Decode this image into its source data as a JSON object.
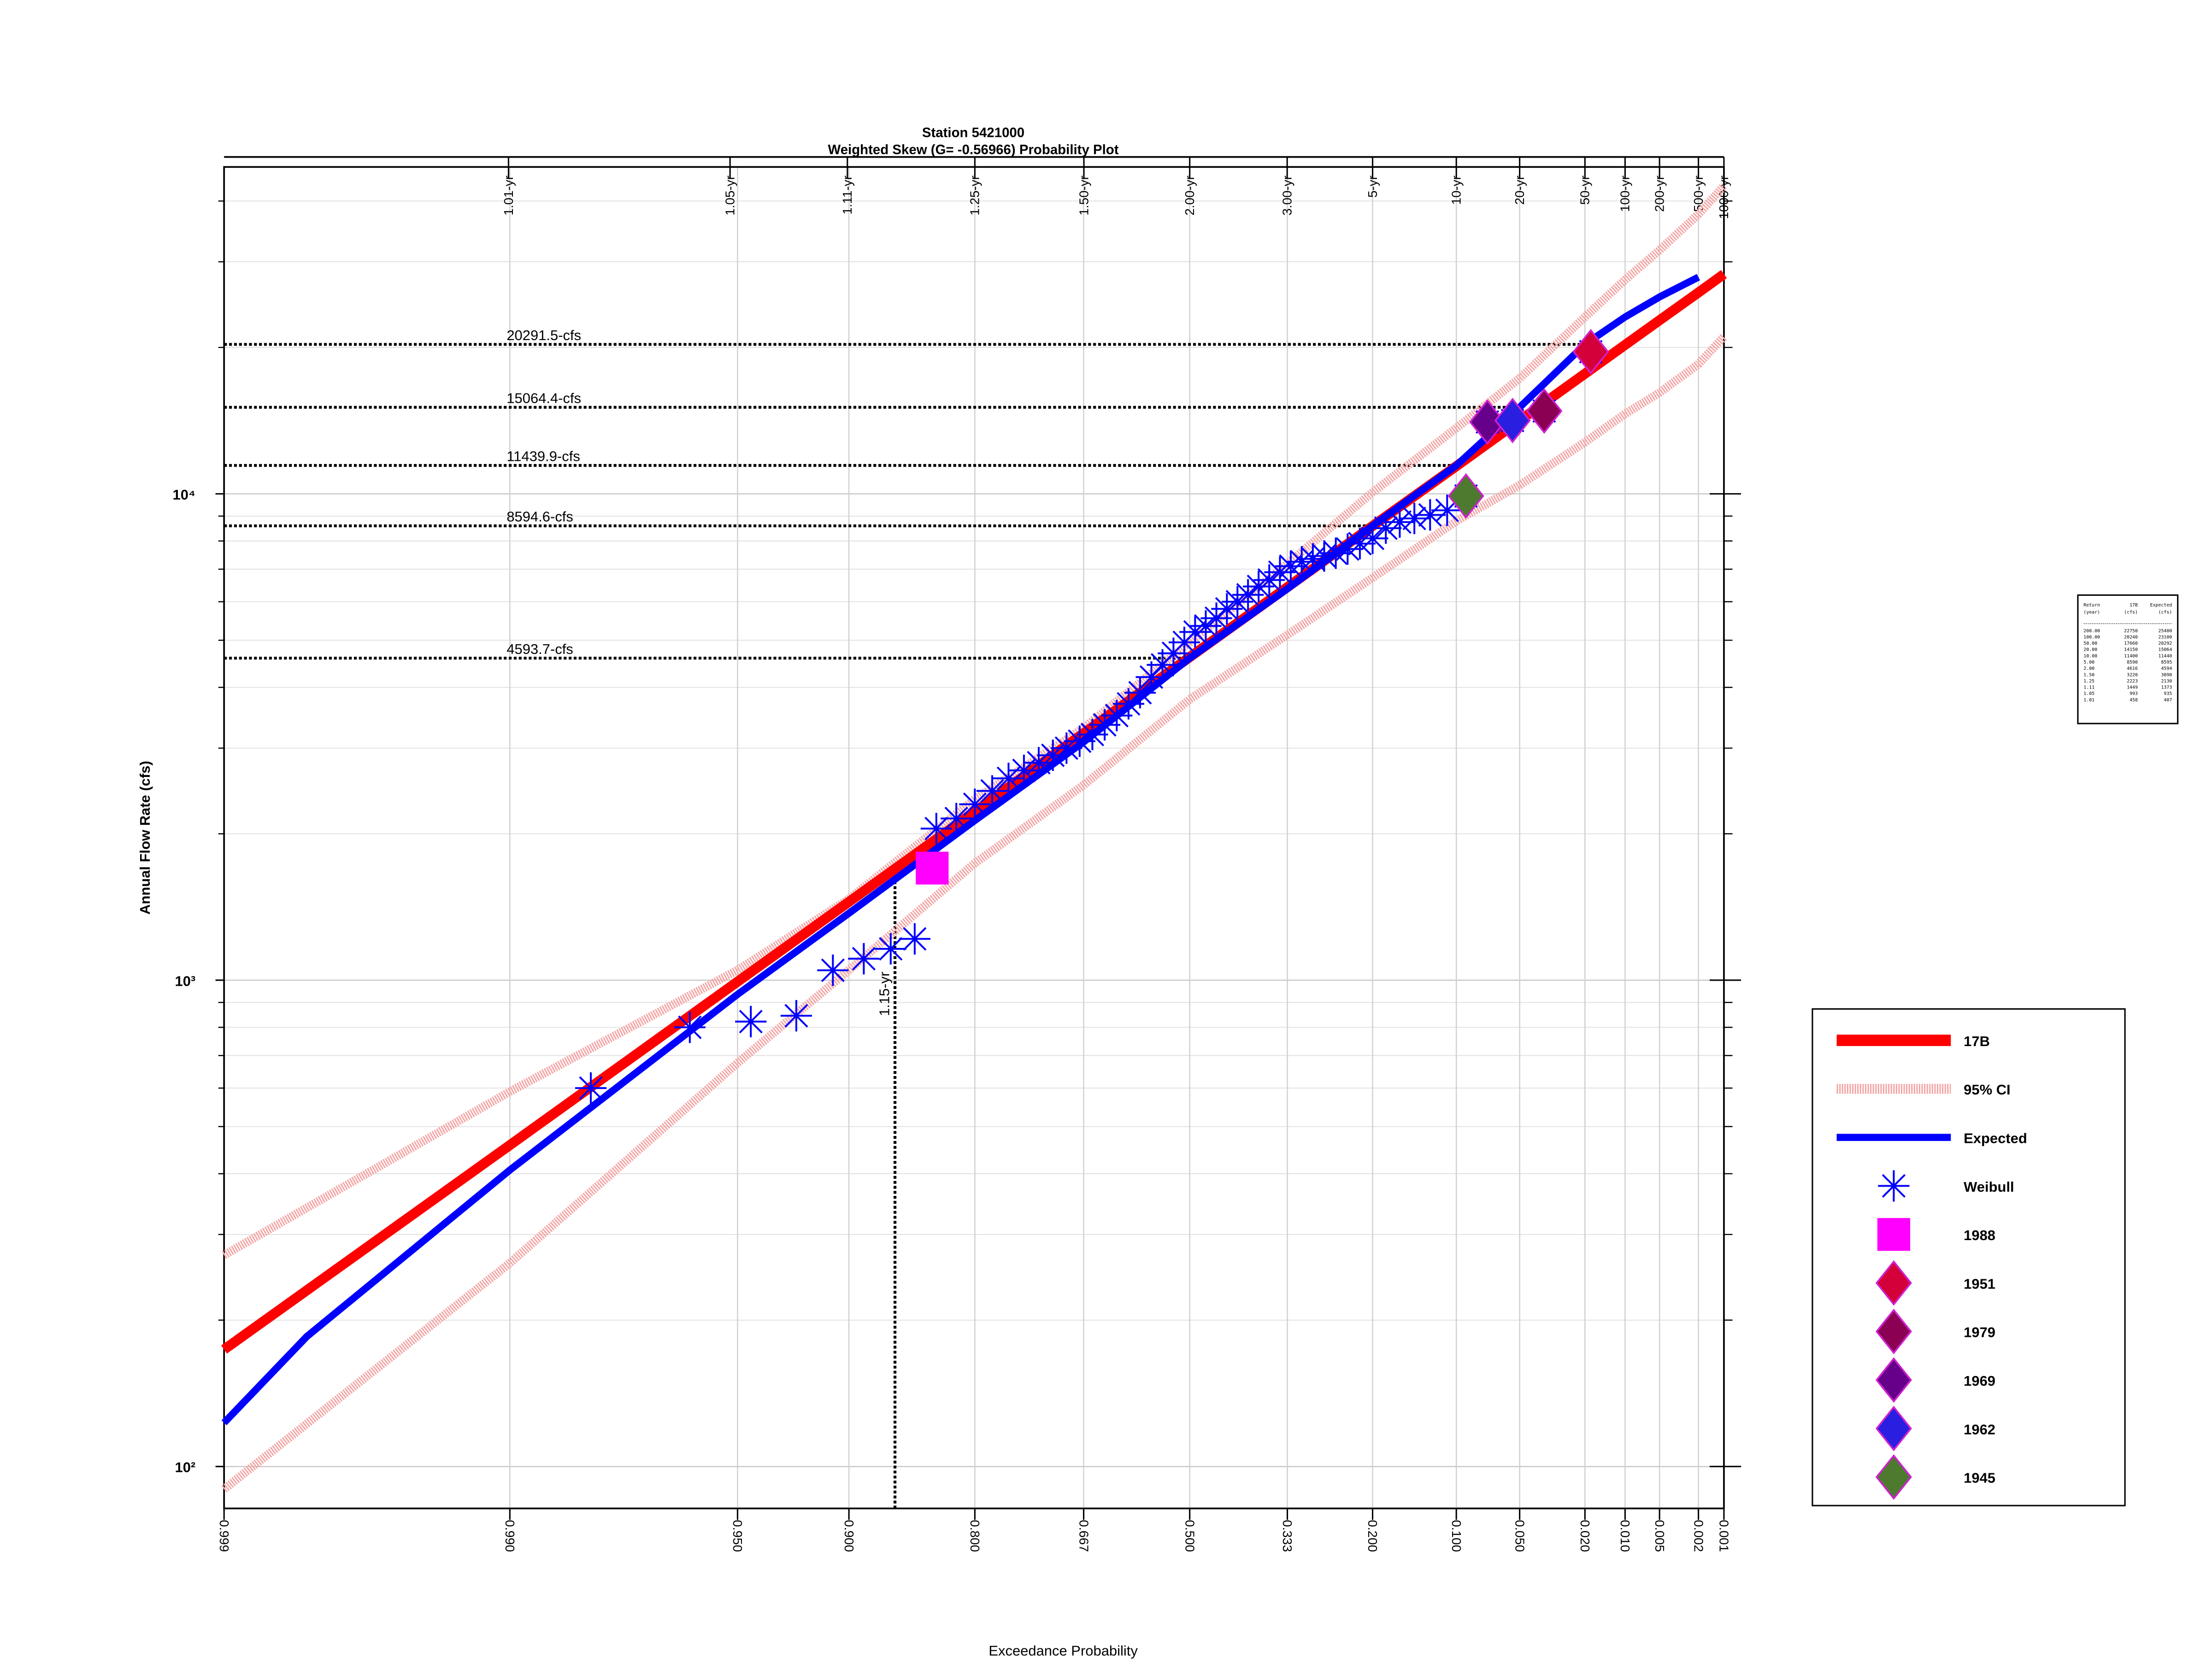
{
  "chart_data": {
    "type": "line",
    "title": "Station 5421000",
    "subtitle": "Weighted Skew (G= -0.56966) Probability Plot",
    "x_label": "Exceedance Probability",
    "y_label": "Annual Flow Rate (cfs)",
    "x_scale": "pearson3",
    "skew": -0.56966,
    "y_scale": "log",
    "grid": true,
    "legend": "right",
    "xlim": [
      0.999,
      0.001
    ],
    "xticks": [
      0.999,
      {
        "value": 0.99,
        "label": "0.990"
      },
      {
        "value": 0.95,
        "label": "0.950"
      },
      {
        "value": 0.9,
        "label": "0.900"
      },
      {
        "value": 0.8,
        "label": "0.800"
      },
      0.667,
      {
        "value": 0.5,
        "label": "0.500"
      },
      0.333,
      {
        "value": 0.2,
        "label": "0.200"
      },
      {
        "value": 0.1,
        "label": "0.100"
      },
      {
        "value": 0.05,
        "label": "0.050"
      },
      {
        "value": 0.02,
        "label": "0.020"
      },
      {
        "value": 0.01,
        "label": "0.010"
      },
      0.005,
      0.002,
      0.001
    ],
    "top_ticks": [
      {
        "value": 0.9901,
        "label": "1.01-yr"
      },
      {
        "value": 0.9524,
        "label": "1.05-yr"
      },
      {
        "value": 0.9009,
        "label": "1.11-yr"
      },
      {
        "value": 0.8,
        "label": "1.25-yr"
      },
      {
        "value": 0.6667,
        "label": "1.50-yr"
      },
      {
        "value": 0.5,
        "label": "2.00-yr"
      },
      {
        "value": 0.3333,
        "label": "3.00-yr"
      },
      {
        "value": 0.2,
        "label": "5-yr"
      },
      {
        "value": 0.1,
        "label": "10-yr"
      },
      {
        "value": 0.05,
        "label": "20-yr"
      },
      {
        "value": 0.02,
        "label": "50-yr"
      },
      {
        "value": 0.01,
        "label": "100-yr"
      },
      {
        "value": 0.005,
        "label": "200-yr"
      },
      {
        "value": 0.002,
        "label": "500-yr"
      },
      {
        "value": 0.001,
        "label": "1000-yr"
      }
    ],
    "ylim": [
      82,
      47000
    ],
    "yticks": [
      {
        "value": 100,
        "label": "10²"
      },
      {
        "value": 1000,
        "label": "10³"
      },
      {
        "value": 10000,
        "label": "10⁴"
      }
    ],
    "minor_yticks": [
      200,
      300,
      400,
      500,
      600,
      700,
      800,
      900,
      2000,
      3000,
      4000,
      5000,
      6000,
      7000,
      8000,
      9000,
      20000,
      30000,
      40000
    ],
    "series": [
      {
        "name": "17B",
        "kind": "line",
        "color": "#ff0000",
        "x": [
          0.999,
          0.99,
          0.95,
          0.9,
          0.8,
          0.667,
          0.5,
          0.333,
          0.2,
          0.1,
          0.05,
          0.02,
          0.01,
          0.005,
          0.002,
          0.001
        ],
        "values": [
          174,
          458,
          993,
          1449,
          2223,
          3220,
          4616,
          6427,
          8590,
          11400,
          14150,
          17660,
          20240,
          22750,
          25940,
          28300
        ]
      },
      {
        "name": "95% CI",
        "kind": "band",
        "color": "#f4a6a6",
        "x": [
          0.999,
          0.99,
          0.95,
          0.9,
          0.8,
          0.667,
          0.5,
          0.333,
          0.2,
          0.1,
          0.05,
          0.02,
          0.01,
          0.005,
          0.002,
          0.001
        ],
        "upper": [
          272,
          590,
          1049,
          1469,
          2356,
          3300,
          4950,
          7180,
          10070,
          13650,
          17280,
          23100,
          27560,
          31700,
          37580,
          42950
        ],
        "lower": [
          89.8,
          262,
          676,
          1049,
          1740,
          2520,
          3780,
          5130,
          6720,
          8790,
          10420,
          12770,
          14600,
          16150,
          18480,
          21040
        ]
      },
      {
        "name": "Expected",
        "kind": "line",
        "color": "#0000ff",
        "x": [
          0.999,
          0.998,
          0.99,
          0.95,
          0.9,
          0.8,
          0.667,
          0.5,
          0.333,
          0.2,
          0.1,
          0.05,
          0.02,
          0.01,
          0.005,
          0.002
        ],
        "values": [
          123,
          185,
          407,
          935,
          1373,
          2130,
          3090,
          4594,
          6380,
          8595,
          11440,
          15064,
          20292,
          23100,
          25400,
          27900
        ]
      },
      {
        "name": "Weibull",
        "kind": "asterisk",
        "color": "#0000ff",
        "x": [
          0.0182,
          0.0364,
          0.0545,
          0.0727,
          0.0909,
          0.1091,
          0.1273,
          0.1455,
          0.1636,
          0.1818,
          0.2,
          0.2182,
          0.2364,
          0.2545,
          0.2727,
          0.2909,
          0.3091,
          0.3273,
          0.3455,
          0.3636,
          0.3818,
          0.4,
          0.4182,
          0.4364,
          0.4545,
          0.4727,
          0.4909,
          0.5091,
          0.5273,
          0.5455,
          0.5636,
          0.5818,
          0.6,
          0.6182,
          0.6364,
          0.6545,
          0.6727,
          0.6909,
          0.7091,
          0.7273,
          0.7455,
          0.7636,
          0.7818,
          0.8,
          0.8182,
          0.8364,
          0.8545,
          0.8727,
          0.8909,
          0.9091,
          0.9273,
          0.9455,
          0.9636,
          0.9818
        ],
        "values": [
          19600,
          14800,
          14150,
          14050,
          9900,
          9250,
          9050,
          8900,
          8750,
          8500,
          8100,
          7900,
          7700,
          7550,
          7450,
          7350,
          7250,
          7100,
          6900,
          6650,
          6450,
          6200,
          6000,
          5800,
          5550,
          5350,
          5200,
          4950,
          4700,
          4450,
          4200,
          3900,
          3700,
          3500,
          3350,
          3200,
          3100,
          3000,
          2900,
          2800,
          2700,
          2600,
          2450,
          2300,
          2150,
          2050,
          1216,
          1160,
          1107,
          1048,
          845,
          822,
          800,
          600
        ]
      },
      {
        "name": "1988",
        "kind": "square",
        "color": "#ff00ff",
        "x": [
          0.84
        ],
        "values": [
          1700
        ]
      },
      {
        "name": "1951",
        "kind": "diamond",
        "color": "#d4003a",
        "x": [
          0.0182
        ],
        "values": [
          19600
        ]
      },
      {
        "name": "1979",
        "kind": "diamond",
        "color": "#8b0052",
        "x": [
          0.0364
        ],
        "values": [
          14800
        ]
      },
      {
        "name": "1969",
        "kind": "diamond",
        "color": "#66008a",
        "x": [
          0.0727
        ],
        "values": [
          14050
        ]
      },
      {
        "name": "1962",
        "kind": "diamond",
        "color": "#2a1ee0",
        "x": [
          0.0545
        ],
        "values": [
          14150
        ]
      },
      {
        "name": "1945",
        "kind": "diamond",
        "color": "#4d7a2e",
        "x": [
          0.0909
        ],
        "values": [
          9900
        ]
      }
    ],
    "marker_edge_color": "#d020d0",
    "annotations": [
      {
        "value": 20291.5,
        "x": 0.02,
        "label": "20291.5-cfs"
      },
      {
        "value": 15064.4,
        "x": 0.05,
        "label": "15064.4-cfs"
      },
      {
        "value": 11439.9,
        "x": 0.1,
        "label": "11439.9-cfs"
      },
      {
        "value": 8594.6,
        "x": 0.2,
        "label": "8594.6-cfs"
      },
      {
        "value": 4593.7,
        "x": 0.5,
        "label": "4593.7-cfs"
      }
    ],
    "vertical_annotation": {
      "x": 0.8696,
      "value": 1740,
      "label": "1.15-yr"
    }
  },
  "table": {
    "header": [
      [
        "Return",
        "17B",
        "Expected"
      ],
      [
        "(year)",
        "(cfs)",
        "(cfs)"
      ]
    ],
    "rows": [
      [
        "200.00",
        "22750",
        "25400"
      ],
      [
        "100.00",
        "20240",
        "23100"
      ],
      [
        "50.00",
        "17660",
        "20292"
      ],
      [
        "20.00",
        "14150",
        "15064"
      ],
      [
        "10.00",
        "11400",
        "11440"
      ],
      [
        "5.00",
        "8590",
        "8595"
      ],
      [
        "2.00",
        "4616",
        "4594"
      ],
      [
        "1.50",
        "3220",
        "3090"
      ],
      [
        "1.25",
        "2223",
        "2130"
      ],
      [
        "1.11",
        "1449",
        "1373"
      ],
      [
        "1.05",
        "993",
        "935"
      ],
      [
        "1.01",
        "458",
        "407"
      ]
    ]
  }
}
